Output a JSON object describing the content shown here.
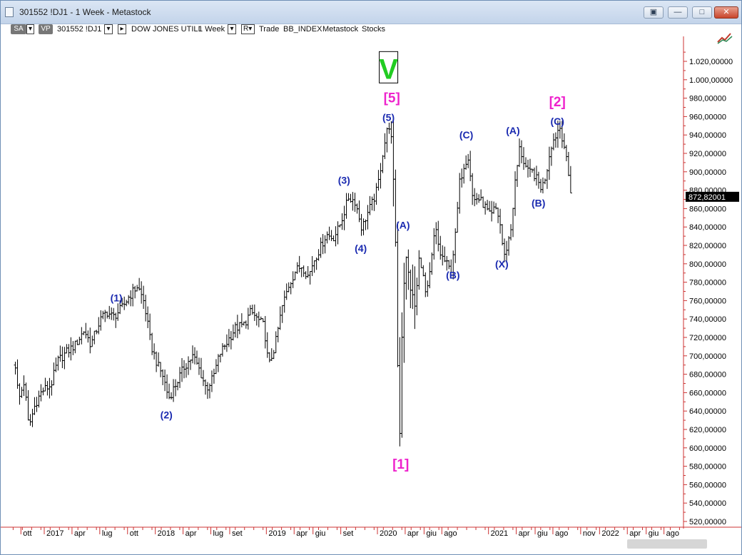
{
  "window": {
    "title": "301552 !DJ1 - 1 Week - Metastock",
    "buttons": [
      "restore-view",
      "minimize",
      "maximize",
      "close"
    ]
  },
  "toolbar": {
    "sa": "SA",
    "vp": "VP",
    "symbol": "301552 !DJ1",
    "name": "DOW JONES UTILI",
    "period": "1 Week",
    "r": "R",
    "mode": "Trade",
    "index": "BB_INDEX",
    "source": "Metastock",
    "type": "Stocks"
  },
  "chart_data": {
    "type": "ohlc",
    "ylim": [
      510,
      1040
    ],
    "yticks": [
      520,
      540,
      560,
      580,
      600,
      620,
      640,
      660,
      680,
      700,
      720,
      740,
      760,
      780,
      800,
      820,
      840,
      860,
      880,
      900,
      920,
      940,
      960,
      980,
      1000,
      1020
    ],
    "ytick_format": "comma-5",
    "xticks": [
      {
        "label": "ott",
        "t": 2016.79
      },
      {
        "label": "2017",
        "t": 2017.0
      },
      {
        "label": "apr",
        "t": 2017.25
      },
      {
        "label": "lug",
        "t": 2017.5
      },
      {
        "label": "ott",
        "t": 2017.75
      },
      {
        "label": "2018",
        "t": 2018.0
      },
      {
        "label": "apr",
        "t": 2018.25
      },
      {
        "label": "lug",
        "t": 2018.5
      },
      {
        "label": "set",
        "t": 2018.67
      },
      {
        "label": "2019",
        "t": 2019.0
      },
      {
        "label": "apr",
        "t": 2019.25
      },
      {
        "label": "giu",
        "t": 2019.42
      },
      {
        "label": "set",
        "t": 2019.67
      },
      {
        "label": "2020",
        "t": 2020.0
      },
      {
        "label": "apr",
        "t": 2020.25
      },
      {
        "label": "giu",
        "t": 2020.42
      },
      {
        "label": "ago",
        "t": 2020.58
      },
      {
        "label": "2021",
        "t": 2021.0
      },
      {
        "label": "apr",
        "t": 2021.25
      },
      {
        "label": "giu",
        "t": 2021.42
      },
      {
        "label": "ago",
        "t": 2021.58
      },
      {
        "label": "nov",
        "t": 2021.83
      },
      {
        "label": "2022",
        "t": 2022.0
      },
      {
        "label": "apr",
        "t": 2022.25
      },
      {
        "label": "giu",
        "t": 2022.42
      },
      {
        "label": "ago",
        "t": 2022.58
      }
    ],
    "last_price_label": "872,82001",
    "last_price": 872.82,
    "anchors": [
      [
        2016.74,
        690
      ],
      [
        2016.77,
        652
      ],
      [
        2016.82,
        672
      ],
      [
        2016.86,
        622
      ],
      [
        2016.92,
        648
      ],
      [
        2016.98,
        662
      ],
      [
        2017.06,
        668
      ],
      [
        2017.12,
        694
      ],
      [
        2017.2,
        704
      ],
      [
        2017.28,
        712
      ],
      [
        2017.36,
        728
      ],
      [
        2017.42,
        712
      ],
      [
        2017.5,
        738
      ],
      [
        2017.56,
        748
      ],
      [
        2017.62,
        742
      ],
      [
        2017.7,
        752
      ],
      [
        2017.76,
        764
      ],
      [
        2017.84,
        776
      ],
      [
        2017.9,
        758
      ],
      [
        2017.96,
        712
      ],
      [
        2018.02,
        690
      ],
      [
        2018.07,
        678
      ],
      [
        2018.12,
        654
      ],
      [
        2018.18,
        668
      ],
      [
        2018.26,
        688
      ],
      [
        2018.34,
        700
      ],
      [
        2018.4,
        684
      ],
      [
        2018.46,
        664
      ],
      [
        2018.52,
        676
      ],
      [
        2018.58,
        702
      ],
      [
        2018.66,
        718
      ],
      [
        2018.72,
        730
      ],
      [
        2018.8,
        734
      ],
      [
        2018.86,
        748
      ],
      [
        2018.92,
        740
      ],
      [
        2018.98,
        732
      ],
      [
        2019.02,
        688
      ],
      [
        2019.08,
        712
      ],
      [
        2019.14,
        752
      ],
      [
        2019.2,
        776
      ],
      [
        2019.26,
        792
      ],
      [
        2019.32,
        798
      ],
      [
        2019.38,
        786
      ],
      [
        2019.42,
        802
      ],
      [
        2019.48,
        816
      ],
      [
        2019.54,
        832
      ],
      [
        2019.6,
        828
      ],
      [
        2019.65,
        838
      ],
      [
        2019.7,
        856
      ],
      [
        2019.74,
        872
      ],
      [
        2019.8,
        868
      ],
      [
        2019.86,
        838
      ],
      [
        2019.9,
        852
      ],
      [
        2019.96,
        868
      ],
      [
        2020.0,
        882
      ],
      [
        2020.05,
        922
      ],
      [
        2020.1,
        952
      ],
      [
        2020.12,
        946
      ],
      [
        2020.16,
        848
      ],
      [
        2020.18,
        700
      ],
      [
        2020.2,
        610
      ],
      [
        2020.22,
        720
      ],
      [
        2020.25,
        812
      ],
      [
        2020.3,
        772
      ],
      [
        2020.34,
        752
      ],
      [
        2020.38,
        812
      ],
      [
        2020.44,
        762
      ],
      [
        2020.48,
        796
      ],
      [
        2020.52,
        840
      ],
      [
        2020.56,
        812
      ],
      [
        2020.62,
        800
      ],
      [
        2020.66,
        792
      ],
      [
        2020.7,
        828
      ],
      [
        2020.74,
        888
      ],
      [
        2020.78,
        908
      ],
      [
        2020.82,
        918
      ],
      [
        2020.86,
        868
      ],
      [
        2020.9,
        872
      ],
      [
        2020.96,
        864
      ],
      [
        2021.02,
        850
      ],
      [
        2021.06,
        862
      ],
      [
        2021.1,
        848
      ],
      [
        2021.14,
        806
      ],
      [
        2021.2,
        836
      ],
      [
        2021.24,
        888
      ],
      [
        2021.28,
        926
      ],
      [
        2021.32,
        910
      ],
      [
        2021.36,
        898
      ],
      [
        2021.4,
        900
      ],
      [
        2021.44,
        890
      ],
      [
        2021.48,
        882
      ],
      [
        2021.52,
        898
      ],
      [
        2021.56,
        928
      ],
      [
        2021.6,
        938
      ],
      [
        2021.64,
        950
      ],
      [
        2021.68,
        930
      ],
      [
        2021.72,
        896
      ],
      [
        2021.75,
        872
      ]
    ],
    "annotations": [
      {
        "text": "V",
        "t": 2020.1,
        "y": 1012,
        "style": "box-green"
      },
      {
        "text": "[5]",
        "t": 2020.13,
        "y": 980,
        "style": "magenta"
      },
      {
        "text": "(5)",
        "t": 2020.1,
        "y": 959,
        "style": "blue"
      },
      {
        "text": "(3)",
        "t": 2019.7,
        "y": 891,
        "style": "blue"
      },
      {
        "text": "(4)",
        "t": 2019.85,
        "y": 817,
        "style": "blue"
      },
      {
        "text": "(1)",
        "t": 2017.65,
        "y": 763,
        "style": "blue"
      },
      {
        "text": "(2)",
        "t": 2018.1,
        "y": 636,
        "style": "blue"
      },
      {
        "text": "[1]",
        "t": 2020.21,
        "y": 582,
        "style": "magenta"
      },
      {
        "text": "(A)",
        "t": 2020.23,
        "y": 842,
        "style": "blue"
      },
      {
        "text": "(B)",
        "t": 2020.68,
        "y": 788,
        "style": "blue"
      },
      {
        "text": "(C)",
        "t": 2020.8,
        "y": 940,
        "style": "blue"
      },
      {
        "text": "(X)",
        "t": 2021.12,
        "y": 800,
        "style": "blue"
      },
      {
        "text": "(A)",
        "t": 2021.22,
        "y": 945,
        "style": "blue"
      },
      {
        "text": "(B)",
        "t": 2021.45,
        "y": 866,
        "style": "blue"
      },
      {
        "text": "[2]",
        "t": 2021.62,
        "y": 976,
        "style": "magenta"
      },
      {
        "text": "(C)",
        "t": 2021.62,
        "y": 955,
        "style": "blue"
      }
    ]
  }
}
